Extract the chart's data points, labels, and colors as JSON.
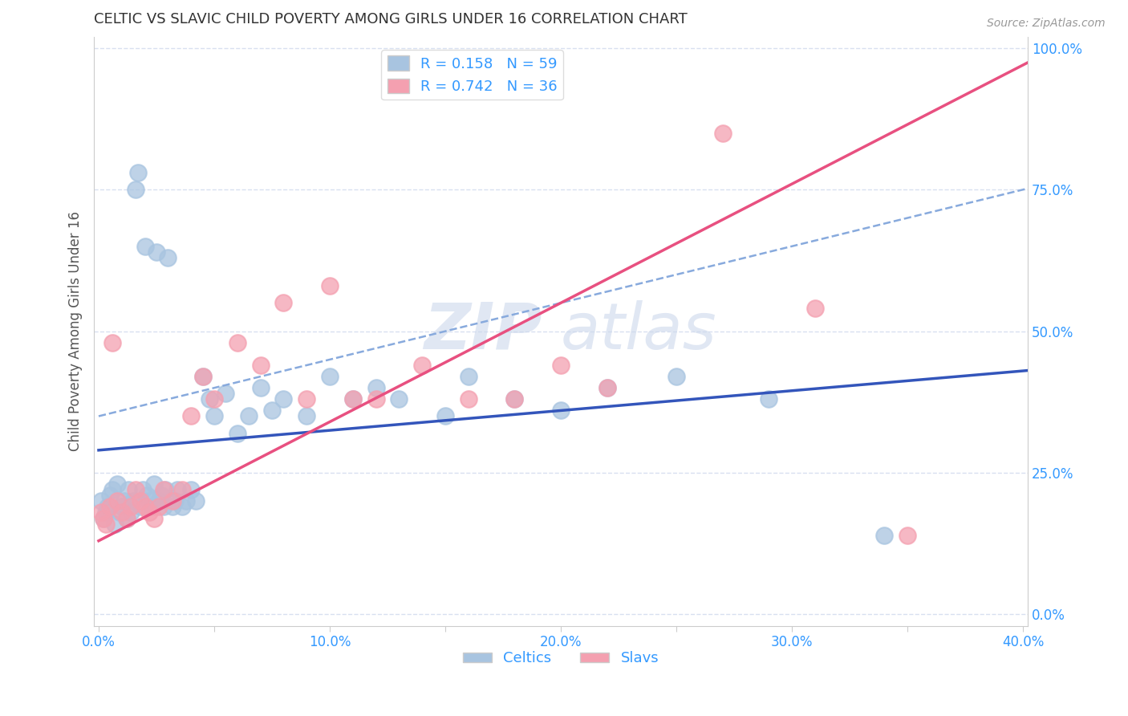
{
  "title": "CELTIC VS SLAVIC CHILD POVERTY AMONG GIRLS UNDER 16 CORRELATION CHART",
  "source": "Source: ZipAtlas.com",
  "ylabel": "Child Poverty Among Girls Under 16",
  "xlabel": "",
  "xlim": [
    -0.002,
    0.402
  ],
  "ylim": [
    -0.02,
    1.02
  ],
  "xticks": [
    0.0,
    0.05,
    0.1,
    0.15,
    0.2,
    0.25,
    0.3,
    0.35,
    0.4
  ],
  "yticks": [
    0.0,
    0.25,
    0.5,
    0.75,
    1.0
  ],
  "xticklabels": [
    "0.0%",
    "",
    "10.0%",
    "",
    "20.0%",
    "",
    "30.0%",
    "",
    "40.0%"
  ],
  "yticklabels": [
    "0.0%",
    "25.0%",
    "50.0%",
    "75.0%",
    "100.0%"
  ],
  "celtics_R": 0.158,
  "celtics_N": 59,
  "slavs_R": 0.742,
  "slavs_N": 36,
  "celtics_color": "#a8c4e0",
  "slavs_color": "#f4a0b0",
  "celtics_line_color": "#3355bb",
  "slavs_line_color": "#e85080",
  "dashed_line_color": "#88aadd",
  "title_color": "#333333",
  "axis_label_color": "#555555",
  "tick_color": "#3399ff",
  "legend_R_color": "#3399ff",
  "grid_color": "#d8e0f0",
  "watermark_color": "#ccd8ec",
  "celtics_intercept": 0.29,
  "celtics_slope": 0.35,
  "slavs_intercept": 0.13,
  "slavs_slope": 2.1,
  "dashed_intercept": 0.35,
  "dashed_slope": 1.0,
  "celtics_x": [
    0.001,
    0.002,
    0.003,
    0.004,
    0.005,
    0.006,
    0.007,
    0.008,
    0.009,
    0.01,
    0.011,
    0.012,
    0.013,
    0.014,
    0.015,
    0.016,
    0.017,
    0.018,
    0.019,
    0.02,
    0.021,
    0.022,
    0.023,
    0.024,
    0.025,
    0.026,
    0.027,
    0.028,
    0.029,
    0.03,
    0.032,
    0.033,
    0.034,
    0.036,
    0.038,
    0.04,
    0.042,
    0.045,
    0.048,
    0.05,
    0.055,
    0.06,
    0.065,
    0.07,
    0.075,
    0.08,
    0.09,
    0.1,
    0.11,
    0.12,
    0.13,
    0.15,
    0.16,
    0.18,
    0.2,
    0.22,
    0.25,
    0.29,
    0.34
  ],
  "celtics_y": [
    0.2,
    0.17,
    0.18,
    0.19,
    0.21,
    0.22,
    0.16,
    0.23,
    0.18,
    0.19,
    0.2,
    0.17,
    0.22,
    0.18,
    0.2,
    0.75,
    0.78,
    0.19,
    0.22,
    0.65,
    0.21,
    0.2,
    0.19,
    0.23,
    0.64,
    0.2,
    0.21,
    0.19,
    0.22,
    0.63,
    0.19,
    0.2,
    0.22,
    0.19,
    0.2,
    0.22,
    0.2,
    0.42,
    0.38,
    0.35,
    0.39,
    0.32,
    0.35,
    0.4,
    0.36,
    0.38,
    0.35,
    0.42,
    0.38,
    0.4,
    0.38,
    0.35,
    0.42,
    0.38,
    0.36,
    0.4,
    0.42,
    0.38,
    0.14
  ],
  "slavs_x": [
    0.001,
    0.002,
    0.003,
    0.005,
    0.006,
    0.008,
    0.01,
    0.012,
    0.014,
    0.016,
    0.018,
    0.02,
    0.022,
    0.024,
    0.026,
    0.028,
    0.032,
    0.036,
    0.04,
    0.045,
    0.05,
    0.06,
    0.07,
    0.08,
    0.09,
    0.1,
    0.11,
    0.12,
    0.14,
    0.16,
    0.18,
    0.2,
    0.22,
    0.27,
    0.31,
    0.35
  ],
  "slavs_y": [
    0.18,
    0.17,
    0.16,
    0.19,
    0.48,
    0.2,
    0.18,
    0.17,
    0.19,
    0.22,
    0.2,
    0.19,
    0.18,
    0.17,
    0.19,
    0.22,
    0.2,
    0.22,
    0.35,
    0.42,
    0.38,
    0.48,
    0.44,
    0.55,
    0.38,
    0.58,
    0.38,
    0.38,
    0.44,
    0.38,
    0.38,
    0.44,
    0.4,
    0.85,
    0.54,
    0.14
  ]
}
